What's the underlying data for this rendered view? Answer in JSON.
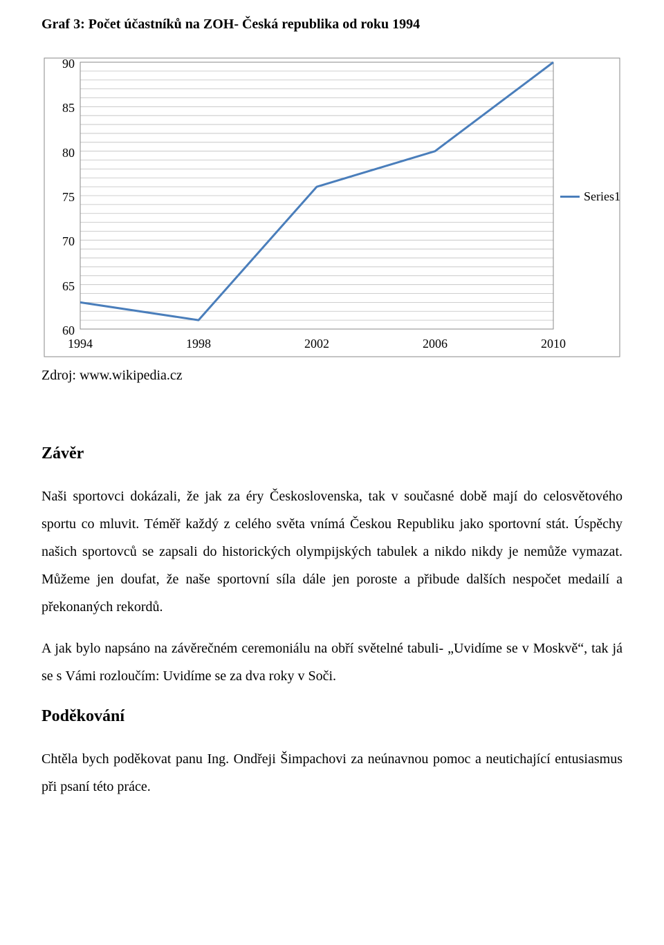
{
  "chart": {
    "title": "Graf 3: Počet účastníků na ZOH- Česká republika od roku 1994",
    "type": "line",
    "x_categories": [
      "1994",
      "1998",
      "2002",
      "2006",
      "2010"
    ],
    "y_values": [
      63,
      61,
      76,
      80,
      90
    ],
    "y_ticks": [
      60,
      65,
      70,
      75,
      80,
      85,
      90
    ],
    "ylim": [
      60,
      90
    ],
    "minor_gridlines_per_major": 5,
    "series_label": "Series1",
    "line_color": "#4a7ebb",
    "line_width": 3,
    "background_color": "#ffffff",
    "grid_color": "#bfbfbf",
    "border_color": "#8a8a8a",
    "plot_border_color": "#8a8a8a",
    "title_fontsize": 20,
    "tick_fontsize": 18,
    "legend_fontsize": 18
  },
  "source": "Zdroj: www.wikipedia.cz",
  "zaver": {
    "heading": "Závěr",
    "p1": "Naši sportovci dokázali, že jak za éry Československa, tak v současné době mají do celosvětového sportu co mluvit. Téměř každý z celého světa vnímá Českou Republiku jako sportovní stát. Úspěchy našich sportovců se zapsali do historických olympijských tabulek a nikdo nikdy je nemůže vymazat. Můžeme jen doufat, že naše sportovní síla dále jen poroste a přibude dalších nespočet medailí a překonaných rekordů.",
    "p2": "A jak bylo napsáno na závěrečném ceremoniálu na obří světelné tabuli- „Uvidíme se v Moskvě“, tak já se s Vámi rozloučím: Uvidíme se za dva roky v Soči."
  },
  "podekovani": {
    "heading": "Poděkování",
    "p1": "Chtěla bych poděkovat panu Ing. Ondřeji Šimpachovi za neúnavnou pomoc a neutichající entusiasmus při psaní této práce."
  }
}
